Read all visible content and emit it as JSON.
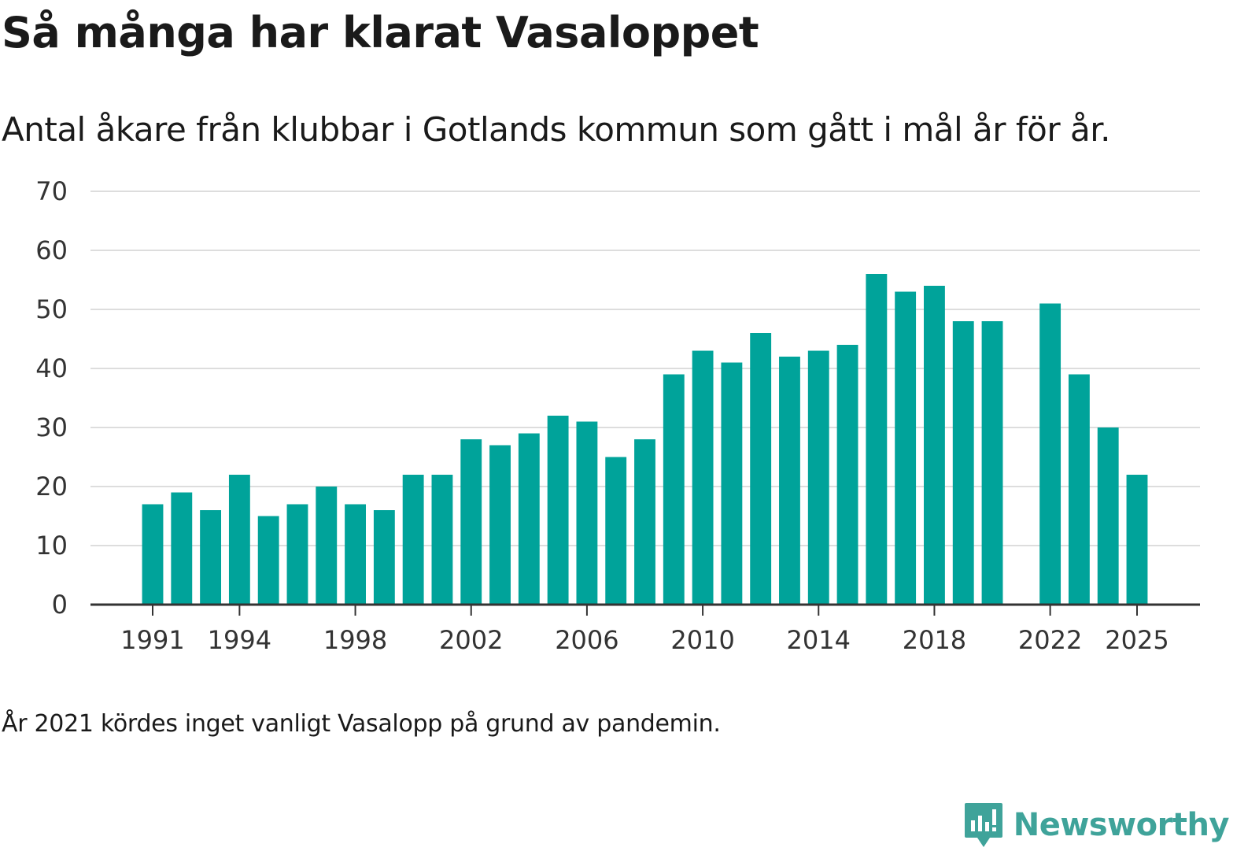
{
  "title": "Så många har klarat Vasaloppet",
  "subtitle": "Antal åkare från klubbar i Gotlands kommun som gått i mål år för år.",
  "note": "År 2021 kördes inget vanligt Vasalopp på grund av pandemin.",
  "brand": {
    "name": "Newsworthy",
    "logo_icon": "newsworthy-bar-chart-logo-icon",
    "color": "#3fa39a"
  },
  "chart_data": {
    "type": "bar",
    "title": "Så många har klarat Vasaloppet",
    "xlabel": "",
    "ylabel": "",
    "ylim": [
      0,
      70
    ],
    "yticks": [
      0,
      10,
      20,
      30,
      40,
      50,
      60,
      70
    ],
    "xticks": [
      1991,
      1994,
      1998,
      2002,
      2006,
      2010,
      2014,
      2018,
      2022,
      2025
    ],
    "grid": true,
    "bar_color": "#00a39a",
    "categories": [
      1991,
      1992,
      1993,
      1994,
      1995,
      1996,
      1997,
      1998,
      1999,
      2000,
      2001,
      2002,
      2003,
      2004,
      2005,
      2006,
      2007,
      2008,
      2009,
      2010,
      2011,
      2012,
      2013,
      2014,
      2015,
      2016,
      2017,
      2018,
      2019,
      2020,
      2021,
      2022,
      2023,
      2024,
      2025
    ],
    "values": [
      17,
      19,
      16,
      22,
      15,
      17,
      20,
      17,
      16,
      22,
      22,
      28,
      27,
      29,
      32,
      31,
      25,
      28,
      39,
      43,
      41,
      46,
      42,
      43,
      44,
      56,
      53,
      54,
      48,
      48,
      null,
      51,
      39,
      30,
      22
    ]
  }
}
